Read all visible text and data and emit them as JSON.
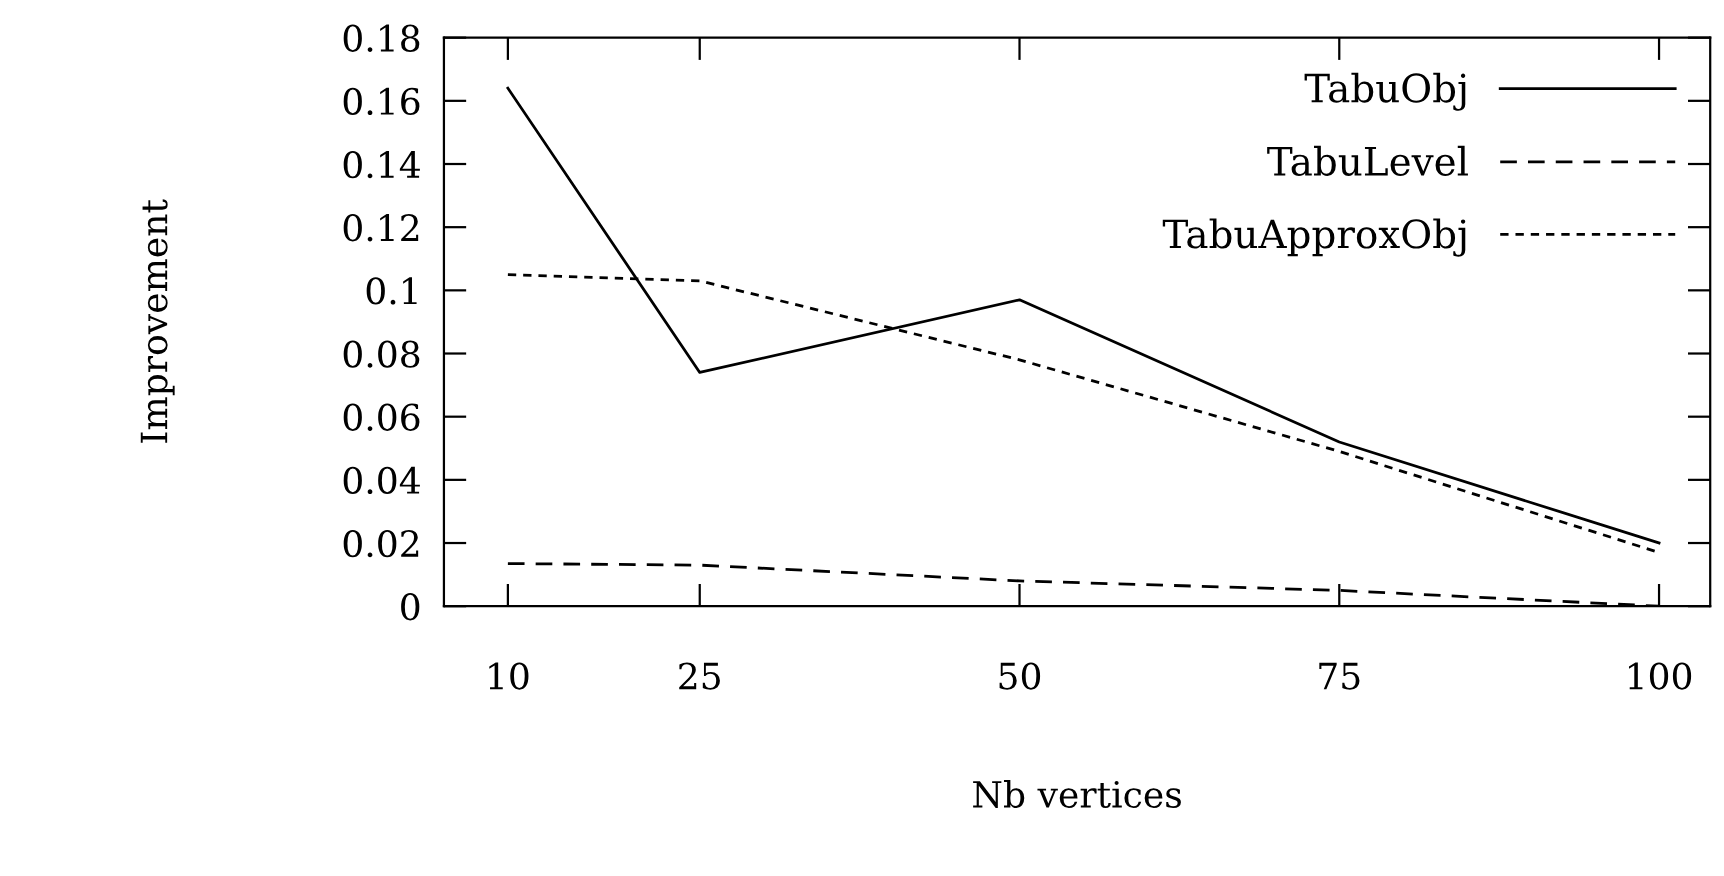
{
  "chart_data": {
    "type": "line",
    "xlabel": "Nb vertices",
    "ylabel": "Improvement",
    "x": [
      10,
      25,
      50,
      75,
      100
    ],
    "series": [
      {
        "name": "TabuObj",
        "color": "#000000",
        "line_style": "solid",
        "values": [
          0.164,
          0.074,
          0.097,
          0.052,
          0.02
        ]
      },
      {
        "name": "TabuLevel",
        "color": "#000000",
        "line_style": "dashed",
        "values": [
          0.0135,
          0.013,
          0.008,
          0.005,
          0.0
        ]
      },
      {
        "name": "TabuApproxObj",
        "color": "#000000",
        "line_style": "dotted",
        "values": [
          0.105,
          0.103,
          0.078,
          0.049,
          0.017
        ]
      }
    ],
    "xlim": [
      5,
      104
    ],
    "xticks": [
      10,
      25,
      50,
      75,
      100
    ],
    "ylim": [
      0,
      0.18
    ],
    "yticks": [
      0,
      0.02,
      0.04,
      0.06,
      0.08,
      0.1,
      0.12,
      0.14,
      0.16,
      0.18
    ],
    "grid": false,
    "legend": "top right",
    "marker": "none"
  }
}
